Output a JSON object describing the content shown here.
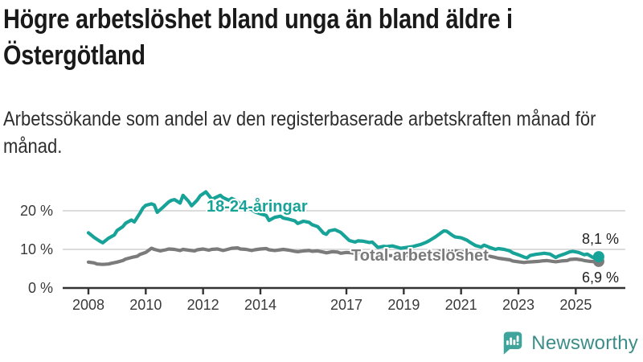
{
  "header": {
    "title": "Högre arbetslöshet bland unga än bland äldre i Östergötland",
    "subtitle": "Arbetssökande som andel av den registerbaserade arbetskraften månad för månad."
  },
  "chart_data": {
    "type": "line",
    "title": "Högre arbetslöshet bland unga än bland äldre i Östergötland",
    "subtitle": "Arbetssökande som andel av den registerbaserade arbetskraften månad för månad.",
    "xlabel": "",
    "ylabel": "",
    "x_unit": "year, monthly values",
    "xlim": [
      2007.2,
      2026.8
    ],
    "ylim": [
      0,
      29
    ],
    "grid": "horizontal",
    "grid_color": "#dcdcdc",
    "axis_color": "#333333",
    "legend": "inline-labels",
    "x_ticks": [
      2008,
      2010,
      2012,
      2014,
      2017,
      2019,
      2021,
      2023,
      2025
    ],
    "y_ticks": [
      {
        "value": 0,
        "label": "0 %"
      },
      {
        "value": 10,
        "label": "10 %"
      },
      {
        "value": 20,
        "label": "20 %"
      }
    ],
    "series": [
      {
        "name": "Total arbetslöshet",
        "color": "#7b7b7b",
        "end_label": "6,9 %",
        "end_value": 6.9,
        "points": [
          [
            2008.0,
            6.7
          ],
          [
            2008.2,
            6.5
          ],
          [
            2008.3,
            6.2
          ],
          [
            2008.5,
            6.1
          ],
          [
            2008.7,
            6.2
          ],
          [
            2008.8,
            6.4
          ],
          [
            2009.0,
            6.7
          ],
          [
            2009.2,
            7.1
          ],
          [
            2009.3,
            7.5
          ],
          [
            2009.5,
            7.9
          ],
          [
            2009.7,
            8.2
          ],
          [
            2009.8,
            8.7
          ],
          [
            2010.0,
            9.2
          ],
          [
            2010.2,
            10.3
          ],
          [
            2010.3,
            10.0
          ],
          [
            2010.5,
            9.6
          ],
          [
            2010.7,
            9.9
          ],
          [
            2010.8,
            10.1
          ],
          [
            2011.0,
            10.0
          ],
          [
            2011.2,
            9.7
          ],
          [
            2011.3,
            10.0
          ],
          [
            2011.5,
            9.8
          ],
          [
            2011.7,
            9.6
          ],
          [
            2011.8,
            9.9
          ],
          [
            2012.0,
            10.1
          ],
          [
            2012.2,
            9.8
          ],
          [
            2012.3,
            10.0
          ],
          [
            2012.5,
            10.1
          ],
          [
            2012.7,
            9.7
          ],
          [
            2012.8,
            9.9
          ],
          [
            2013.0,
            10.3
          ],
          [
            2013.2,
            10.4
          ],
          [
            2013.3,
            10.1
          ],
          [
            2013.5,
            10.0
          ],
          [
            2013.7,
            9.7
          ],
          [
            2013.8,
            9.9
          ],
          [
            2014.0,
            10.1
          ],
          [
            2014.2,
            10.2
          ],
          [
            2014.3,
            9.9
          ],
          [
            2014.5,
            9.7
          ],
          [
            2014.7,
            9.9
          ],
          [
            2014.8,
            10.0
          ],
          [
            2015.0,
            9.8
          ],
          [
            2015.2,
            9.5
          ],
          [
            2015.3,
            9.4
          ],
          [
            2015.5,
            9.6
          ],
          [
            2015.7,
            9.7
          ],
          [
            2015.8,
            9.5
          ],
          [
            2016.0,
            9.6
          ],
          [
            2016.2,
            9.3
          ],
          [
            2016.3,
            9.1
          ],
          [
            2016.5,
            9.4
          ],
          [
            2016.7,
            9.3
          ],
          [
            2016.8,
            9.0
          ],
          [
            2017.0,
            9.2
          ],
          [
            2017.2,
            9.1
          ],
          [
            2017.3,
            8.9
          ],
          [
            2017.5,
            8.8
          ],
          [
            2017.7,
            8.7
          ],
          [
            2017.8,
            8.6
          ],
          [
            2018.0,
            8.7
          ],
          [
            2018.3,
            8.5
          ],
          [
            2018.5,
            8.4
          ],
          [
            2018.8,
            8.3
          ],
          [
            2019.0,
            8.4
          ],
          [
            2019.3,
            8.5
          ],
          [
            2019.5,
            8.6
          ],
          [
            2019.8,
            8.8
          ],
          [
            2020.0,
            9.1
          ],
          [
            2020.3,
            9.6
          ],
          [
            2020.5,
            9.8
          ],
          [
            2020.8,
            9.6
          ],
          [
            2021.0,
            9.4
          ],
          [
            2021.3,
            9.1
          ],
          [
            2021.5,
            8.8
          ],
          [
            2021.8,
            8.5
          ],
          [
            2022.0,
            8.2
          ],
          [
            2022.2,
            7.9
          ],
          [
            2022.3,
            7.7
          ],
          [
            2022.5,
            7.5
          ],
          [
            2022.7,
            7.3
          ],
          [
            2022.8,
            7.0
          ],
          [
            2023.0,
            6.8
          ],
          [
            2023.2,
            6.6
          ],
          [
            2023.3,
            6.7
          ],
          [
            2023.5,
            6.8
          ],
          [
            2023.7,
            6.9
          ],
          [
            2023.8,
            7.0
          ],
          [
            2024.0,
            7.1
          ],
          [
            2024.2,
            6.9
          ],
          [
            2024.3,
            6.8
          ],
          [
            2024.5,
            7.0
          ],
          [
            2024.7,
            7.1
          ],
          [
            2024.8,
            7.4
          ],
          [
            2025.0,
            7.5
          ],
          [
            2025.2,
            7.3
          ],
          [
            2025.3,
            7.1
          ],
          [
            2025.5,
            6.9
          ],
          [
            2025.7,
            6.8
          ],
          [
            2025.8,
            6.9
          ]
        ]
      },
      {
        "name": "18-24-åringar",
        "color": "#18a399",
        "end_label": "8,1 %",
        "end_value": 8.1,
        "points": [
          [
            2008.0,
            14.3
          ],
          [
            2008.2,
            13.1
          ],
          [
            2008.4,
            12.1
          ],
          [
            2008.5,
            11.7
          ],
          [
            2008.7,
            12.9
          ],
          [
            2008.9,
            13.7
          ],
          [
            2009.0,
            14.9
          ],
          [
            2009.2,
            15.9
          ],
          [
            2009.3,
            16.8
          ],
          [
            2009.5,
            17.6
          ],
          [
            2009.6,
            17.1
          ],
          [
            2009.8,
            19.4
          ],
          [
            2009.9,
            20.7
          ],
          [
            2010.0,
            21.4
          ],
          [
            2010.2,
            21.8
          ],
          [
            2010.3,
            21.5
          ],
          [
            2010.4,
            19.6
          ],
          [
            2010.6,
            20.9
          ],
          [
            2010.8,
            22.3
          ],
          [
            2010.9,
            22.7
          ],
          [
            2011.0,
            22.9
          ],
          [
            2011.2,
            22.0
          ],
          [
            2011.3,
            24.0
          ],
          [
            2011.5,
            22.4
          ],
          [
            2011.6,
            21.3
          ],
          [
            2011.8,
            22.8
          ],
          [
            2011.9,
            23.9
          ],
          [
            2012.0,
            24.4
          ],
          [
            2012.1,
            24.9
          ],
          [
            2012.3,
            23.0
          ],
          [
            2012.4,
            23.3
          ],
          [
            2012.6,
            24.0
          ],
          [
            2012.7,
            23.4
          ],
          [
            2012.9,
            22.7
          ],
          [
            2013.0,
            23.2
          ],
          [
            2013.2,
            22.4
          ],
          [
            2013.3,
            21.7
          ],
          [
            2013.5,
            21.0
          ],
          [
            2013.7,
            20.3
          ],
          [
            2013.8,
            19.7
          ],
          [
            2014.0,
            19.2
          ],
          [
            2014.2,
            18.8
          ],
          [
            2014.3,
            17.5
          ],
          [
            2014.5,
            18.3
          ],
          [
            2014.7,
            18.6
          ],
          [
            2014.8,
            18.1
          ],
          [
            2015.0,
            17.8
          ],
          [
            2015.2,
            17.4
          ],
          [
            2015.3,
            16.7
          ],
          [
            2015.5,
            17.3
          ],
          [
            2015.7,
            17.0
          ],
          [
            2015.8,
            16.4
          ],
          [
            2016.0,
            15.9
          ],
          [
            2016.2,
            14.2
          ],
          [
            2016.3,
            13.9
          ],
          [
            2016.4,
            14.8
          ],
          [
            2016.6,
            15.1
          ],
          [
            2016.8,
            14.4
          ],
          [
            2016.9,
            13.7
          ],
          [
            2017.1,
            12.3
          ],
          [
            2017.3,
            11.9
          ],
          [
            2017.4,
            12.2
          ],
          [
            2017.6,
            12.1
          ],
          [
            2017.8,
            11.8
          ],
          [
            2017.9,
            11.9
          ],
          [
            2018.1,
            10.5
          ],
          [
            2018.3,
            10.8
          ],
          [
            2018.4,
            10.7
          ],
          [
            2018.6,
            10.9
          ],
          [
            2018.8,
            10.5
          ],
          [
            2018.9,
            10.3
          ],
          [
            2019.1,
            10.5
          ],
          [
            2019.3,
            10.7
          ],
          [
            2019.4,
            10.9
          ],
          [
            2019.6,
            11.3
          ],
          [
            2019.8,
            11.9
          ],
          [
            2019.9,
            12.3
          ],
          [
            2020.1,
            13.2
          ],
          [
            2020.3,
            14.3
          ],
          [
            2020.4,
            14.8
          ],
          [
            2020.5,
            14.7
          ],
          [
            2020.7,
            13.6
          ],
          [
            2020.8,
            13.2
          ],
          [
            2021.0,
            13.0
          ],
          [
            2021.2,
            12.4
          ],
          [
            2021.3,
            11.9
          ],
          [
            2021.5,
            11.0
          ],
          [
            2021.7,
            10.6
          ],
          [
            2021.8,
            11.1
          ],
          [
            2022.0,
            10.5
          ],
          [
            2022.2,
            10.0
          ],
          [
            2022.3,
            10.2
          ],
          [
            2022.5,
            10.0
          ],
          [
            2022.7,
            9.6
          ],
          [
            2022.8,
            9.1
          ],
          [
            2023.0,
            8.6
          ],
          [
            2023.2,
            8.0
          ],
          [
            2023.3,
            7.8
          ],
          [
            2023.4,
            8.4
          ],
          [
            2023.6,
            8.7
          ],
          [
            2023.8,
            8.9
          ],
          [
            2023.9,
            9.0
          ],
          [
            2024.1,
            8.8
          ],
          [
            2024.3,
            7.9
          ],
          [
            2024.4,
            8.3
          ],
          [
            2024.6,
            8.8
          ],
          [
            2024.8,
            9.4
          ],
          [
            2024.9,
            9.5
          ],
          [
            2025.1,
            9.2
          ],
          [
            2025.3,
            8.6
          ],
          [
            2025.4,
            8.8
          ],
          [
            2025.6,
            7.9
          ],
          [
            2025.7,
            8.3
          ],
          [
            2025.8,
            8.1
          ]
        ]
      }
    ]
  },
  "footer": {
    "brand": "Newsworthy",
    "brand_color": "#3fa49c"
  }
}
